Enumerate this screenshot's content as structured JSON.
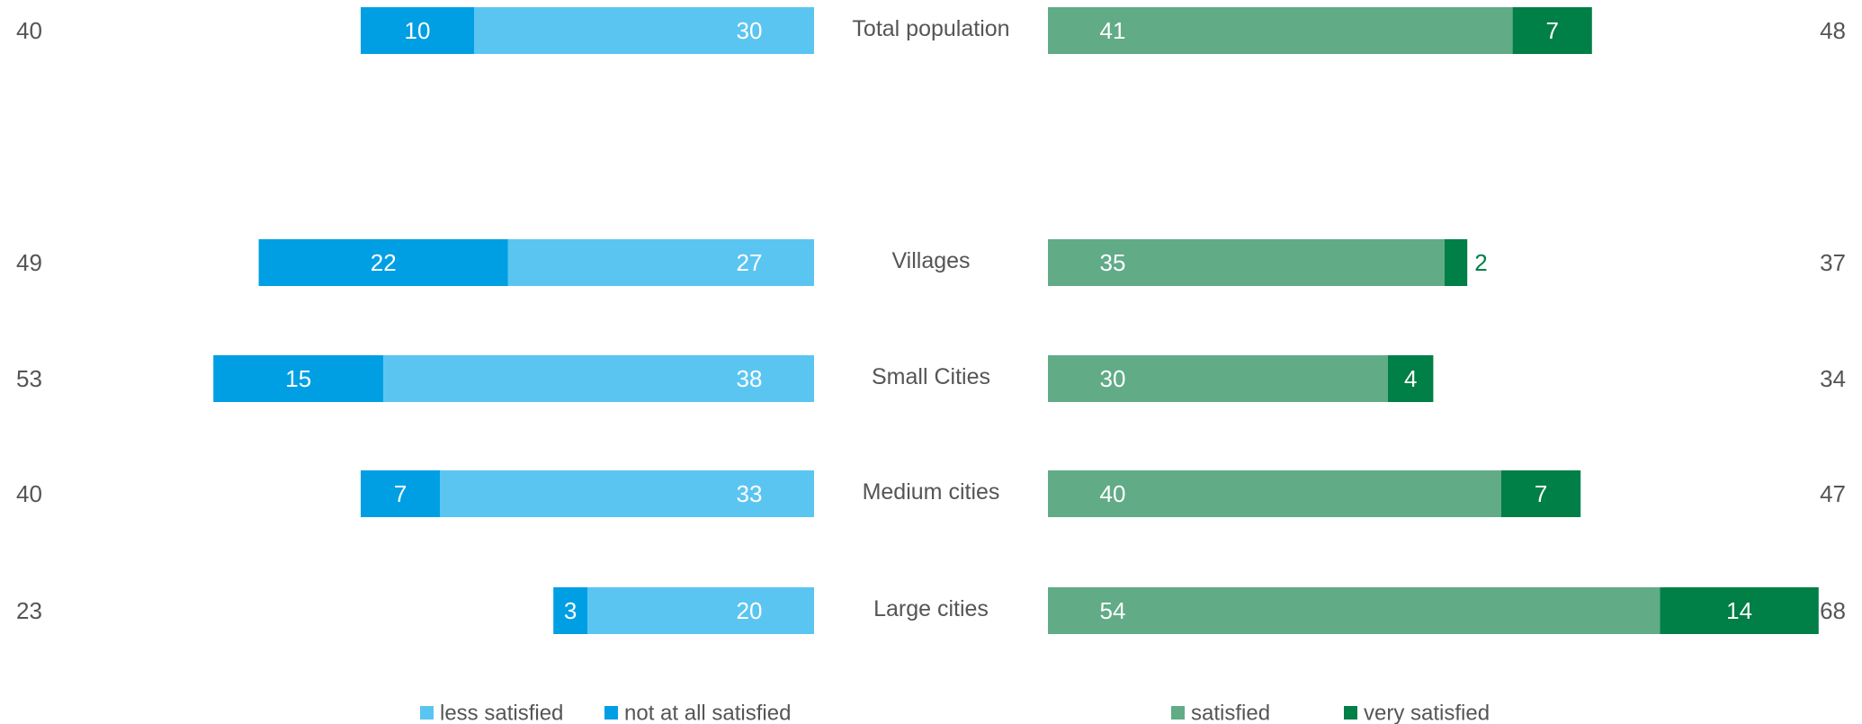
{
  "chart_data": {
    "type": "bar",
    "orientation": "horizontal-diverging",
    "categories": [
      "Total population",
      "Villages",
      "Small Cities",
      "Medium cities",
      "Large cities"
    ],
    "left_totals": [
      40,
      49,
      53,
      40,
      23
    ],
    "right_totals": [
      48,
      37,
      34,
      47,
      68
    ],
    "series": [
      {
        "name": "less satisfied",
        "side": "left",
        "color": "#5bc5f2",
        "values": [
          30,
          27,
          38,
          33,
          20
        ]
      },
      {
        "name": "not at all satisfied",
        "side": "left",
        "color": "#009fe3",
        "values": [
          10,
          22,
          15,
          7,
          3
        ]
      },
      {
        "name": "satisfied",
        "side": "right",
        "color": "#61ab87",
        "values": [
          41,
          35,
          30,
          40,
          54
        ]
      },
      {
        "name": "very satisfied",
        "side": "right",
        "color": "#007f46",
        "values": [
          7,
          2,
          4,
          7,
          14
        ]
      }
    ],
    "legend_position": "bottom",
    "grid": false
  }
}
